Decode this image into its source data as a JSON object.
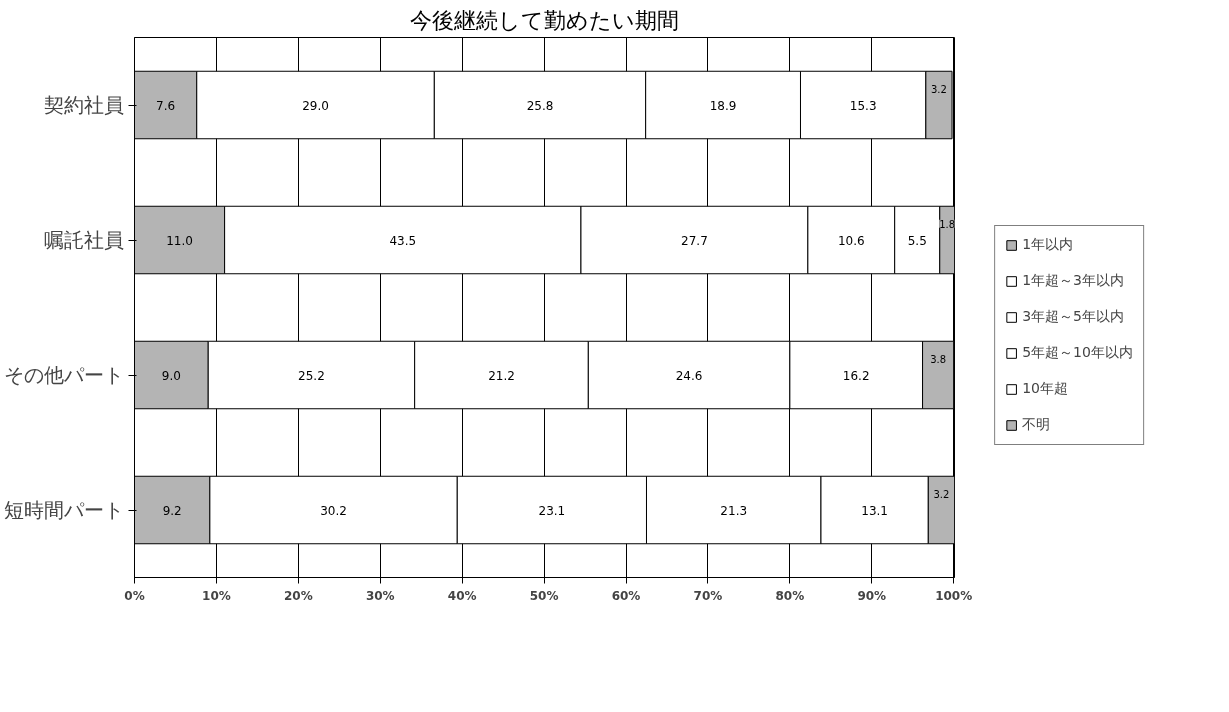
{
  "chart_data": {
    "type": "bar",
    "orientation": "horizontal",
    "stacked": true,
    "title": "今後継続して勤めたい期間",
    "categories": [
      "契約社員",
      "嘱託社員",
      "その他パート",
      "短時間パート"
    ],
    "series": [
      {
        "name": "1年以内",
        "color": "#b4b4b4",
        "values": [
          7.6,
          11.0,
          9.0,
          9.2
        ],
        "value_labels": [
          "7.6",
          "11.0",
          "9.0",
          "9.2"
        ]
      },
      {
        "name": "1年超～3年以内",
        "color": "#ffffff",
        "values": [
          29.0,
          43.5,
          25.2,
          30.2
        ],
        "value_labels": [
          "29.0",
          "43.5",
          "25.2",
          "30.2"
        ]
      },
      {
        "name": "3年超～5年以内",
        "color": "#ffffff",
        "values": [
          25.8,
          27.7,
          21.2,
          23.1
        ],
        "value_labels": [
          "25.8",
          "27.7",
          "21.2",
          "23.1"
        ]
      },
      {
        "name": "5年超～10年以内",
        "color": "#ffffff",
        "values": [
          18.9,
          10.6,
          24.6,
          21.3
        ],
        "value_labels": [
          "18.9",
          "10.6",
          "24.6",
          "21.3"
        ]
      },
      {
        "name": "10年超",
        "color": "#ffffff",
        "values": [
          15.3,
          5.5,
          16.2,
          13.1
        ],
        "value_labels": [
          "15.3",
          "5.5",
          "16.2",
          "13.1"
        ]
      },
      {
        "name": "不明",
        "color": "#b4b4b4",
        "values": [
          3.2,
          1.8,
          3.8,
          3.2
        ],
        "value_labels": [
          "3.2",
          "1.8",
          "3.8",
          "3.2"
        ]
      }
    ],
    "xlim": [
      0,
      100.1
    ],
    "xticks": [
      {
        "value": 0,
        "label": "0%"
      },
      {
        "value": 10,
        "label": "10%"
      },
      {
        "value": 20,
        "label": "20%"
      },
      {
        "value": 30,
        "label": "30%"
      },
      {
        "value": 40,
        "label": "40%"
      },
      {
        "value": 50,
        "label": "50%"
      },
      {
        "value": 60,
        "label": "60%"
      },
      {
        "value": 70,
        "label": "70%"
      },
      {
        "value": 80,
        "label": "80%"
      },
      {
        "value": 90,
        "label": "90%"
      },
      {
        "value": 100,
        "label": "100%"
      }
    ],
    "grid": "x",
    "legend": "right"
  }
}
